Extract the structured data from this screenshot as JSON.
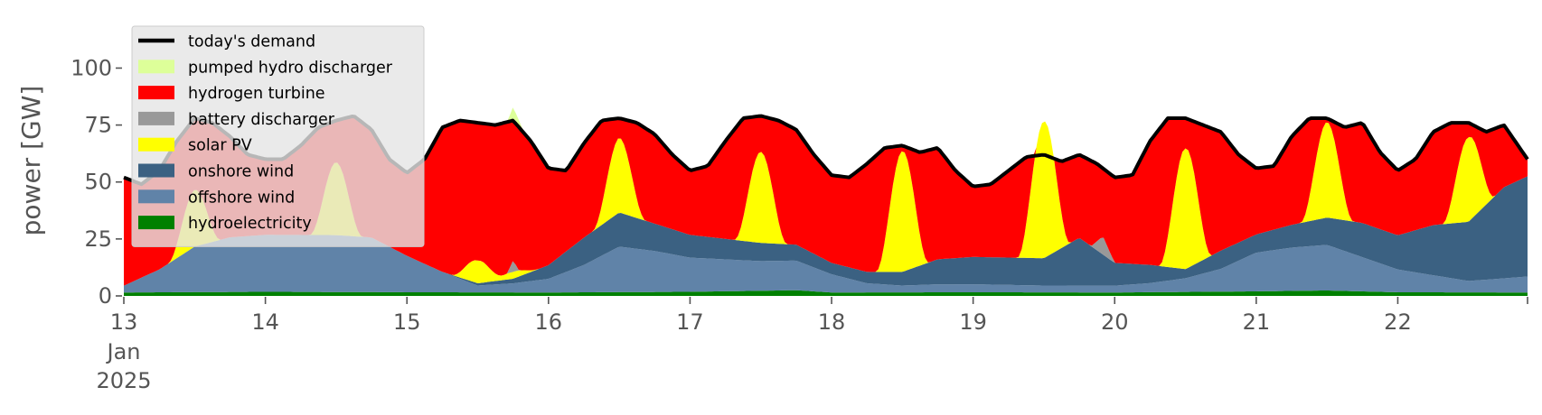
{
  "chart_data": {
    "type": "area",
    "xlabel": "",
    "ylabel": "power [GW]",
    "ylim": [
      0,
      118
    ],
    "xlim": [
      "2025-01-13 00:00",
      "2025-01-22 22:00"
    ],
    "grid": false,
    "legend_position": "top-left",
    "x_ticks": [
      {
        "x": "2025-01-13",
        "label": "13",
        "sub": [
          "Jan",
          "2025"
        ]
      },
      {
        "x": "2025-01-14",
        "label": "14"
      },
      {
        "x": "2025-01-15",
        "label": "15"
      },
      {
        "x": "2025-01-16",
        "label": "16"
      },
      {
        "x": "2025-01-17",
        "label": "17"
      },
      {
        "x": "2025-01-18",
        "label": "18"
      },
      {
        "x": "2025-01-19",
        "label": "19"
      },
      {
        "x": "2025-01-20",
        "label": "20"
      },
      {
        "x": "2025-01-21",
        "label": "21"
      },
      {
        "x": "2025-01-22",
        "label": "22"
      }
    ],
    "y_ticks": [
      0,
      25,
      50,
      75,
      100
    ],
    "stack_order_bottom_to_top": [
      "hydroelectricity",
      "offshore wind",
      "onshore wind",
      "solar PV",
      "battery discharger",
      "hydrogen turbine",
      "pumped hydro discharger"
    ],
    "series": [
      {
        "name": "hydroelectricity",
        "color": "#008000",
        "points": [
          [
            "2025-01-13 00:00",
            1.5
          ],
          [
            "2025-01-14 00:00",
            1.8
          ],
          [
            "2025-01-15 00:00",
            1.6
          ],
          [
            "2025-01-16 00:00",
            1.5
          ],
          [
            "2025-01-17 00:00",
            1.8
          ],
          [
            "2025-01-17 18:00",
            2.5
          ],
          [
            "2025-01-18 00:00",
            1.5
          ],
          [
            "2025-01-19 00:00",
            1.6
          ],
          [
            "2025-01-20 00:00",
            1.5
          ],
          [
            "2025-01-21 00:00",
            2.0
          ],
          [
            "2025-01-21 12:00",
            2.4
          ],
          [
            "2025-01-22 00:00",
            1.6
          ],
          [
            "2025-01-22 22:00",
            1.5
          ]
        ]
      },
      {
        "name": "offshore wind",
        "color": "#6083a8",
        "points": [
          [
            "2025-01-13 00:00",
            3
          ],
          [
            "2025-01-13 06:00",
            10
          ],
          [
            "2025-01-13 12:00",
            20
          ],
          [
            "2025-01-13 18:00",
            24
          ],
          [
            "2025-01-14 00:00",
            25
          ],
          [
            "2025-01-14 06:00",
            25
          ],
          [
            "2025-01-14 12:00",
            25
          ],
          [
            "2025-01-14 18:00",
            24
          ],
          [
            "2025-01-15 00:00",
            16
          ],
          [
            "2025-01-15 06:00",
            9
          ],
          [
            "2025-01-15 12:00",
            3
          ],
          [
            "2025-01-15 18:00",
            4
          ],
          [
            "2025-01-16 00:00",
            6
          ],
          [
            "2025-01-16 06:00",
            12
          ],
          [
            "2025-01-16 12:00",
            20
          ],
          [
            "2025-01-16 18:00",
            18
          ],
          [
            "2025-01-17 00:00",
            15
          ],
          [
            "2025-01-17 06:00",
            14
          ],
          [
            "2025-01-17 12:00",
            13
          ],
          [
            "2025-01-17 18:00",
            13
          ],
          [
            "2025-01-18 00:00",
            8
          ],
          [
            "2025-01-18 06:00",
            4
          ],
          [
            "2025-01-18 12:00",
            3
          ],
          [
            "2025-01-18 18:00",
            3.5
          ],
          [
            "2025-01-19 00:00",
            3.5
          ],
          [
            "2025-01-19 12:00",
            3
          ],
          [
            "2025-01-20 00:00",
            3
          ],
          [
            "2025-01-20 06:00",
            4
          ],
          [
            "2025-01-20 12:00",
            6
          ],
          [
            "2025-01-20 18:00",
            10
          ],
          [
            "2025-01-21 00:00",
            17
          ],
          [
            "2025-01-21 06:00",
            19
          ],
          [
            "2025-01-21 12:00",
            20
          ],
          [
            "2025-01-21 18:00",
            15
          ],
          [
            "2025-01-22 00:00",
            10
          ],
          [
            "2025-01-22 12:00",
            5
          ],
          [
            "2025-01-22 22:00",
            7
          ]
        ]
      },
      {
        "name": "onshore wind",
        "color": "#3b6182",
        "points": [
          [
            "2025-01-13 00:00",
            0
          ],
          [
            "2025-01-14 00:00",
            0
          ],
          [
            "2025-01-14 12:00",
            0
          ],
          [
            "2025-01-15 00:00",
            0
          ],
          [
            "2025-01-15 06:00",
            0
          ],
          [
            "2025-01-15 12:00",
            1
          ],
          [
            "2025-01-15 18:00",
            2
          ],
          [
            "2025-01-16 00:00",
            6
          ],
          [
            "2025-01-16 06:00",
            12
          ],
          [
            "2025-01-16 12:00",
            15
          ],
          [
            "2025-01-16 18:00",
            12
          ],
          [
            "2025-01-17 00:00",
            10
          ],
          [
            "2025-01-17 06:00",
            9
          ],
          [
            "2025-01-17 12:00",
            8
          ],
          [
            "2025-01-17 18:00",
            7
          ],
          [
            "2025-01-18 00:00",
            5
          ],
          [
            "2025-01-18 06:00",
            5
          ],
          [
            "2025-01-18 12:00",
            6
          ],
          [
            "2025-01-18 18:00",
            11
          ],
          [
            "2025-01-19 00:00",
            12
          ],
          [
            "2025-01-19 12:00",
            12
          ],
          [
            "2025-01-19 18:00",
            21
          ],
          [
            "2025-01-20 00:00",
            10
          ],
          [
            "2025-01-20 06:00",
            8
          ],
          [
            "2025-01-20 12:00",
            4
          ],
          [
            "2025-01-20 18:00",
            8
          ],
          [
            "2025-01-21 00:00",
            8
          ],
          [
            "2025-01-21 06:00",
            10
          ],
          [
            "2025-01-21 12:00",
            12
          ],
          [
            "2025-01-21 18:00",
            15
          ],
          [
            "2025-01-22 00:00",
            15
          ],
          [
            "2025-01-22 06:00",
            22
          ],
          [
            "2025-01-22 12:00",
            26
          ],
          [
            "2025-01-22 18:00",
            40
          ],
          [
            "2025-01-22 22:00",
            44
          ]
        ]
      },
      {
        "name": "solar PV",
        "color": "#ffff00",
        "peaks": [
          {
            "center": "2025-01-13 12:00",
            "value": 25
          },
          {
            "center": "2025-01-14 12:00",
            "value": 32
          },
          {
            "center": "2025-01-15 12:00",
            "value": 10
          },
          {
            "center": "2025-01-15 18:00",
            "value": 3
          },
          {
            "center": "2025-01-16 12:00",
            "value": 33
          },
          {
            "center": "2025-01-17 12:00",
            "value": 40
          },
          {
            "center": "2025-01-18 12:00",
            "value": 53
          },
          {
            "center": "2025-01-19 12:00",
            "value": 60
          },
          {
            "center": "2025-01-20 12:00",
            "value": 53
          },
          {
            "center": "2025-01-21 12:00",
            "value": 42
          },
          {
            "center": "2025-01-22 12:00",
            "value": 37
          }
        ]
      },
      {
        "name": "battery discharger",
        "color": "#999999",
        "points": [
          [
            "2025-01-15 17:00",
            0
          ],
          [
            "2025-01-15 18:00",
            5
          ],
          [
            "2025-01-15 19:00",
            0
          ],
          [
            "2025-01-19 20:00",
            0
          ],
          [
            "2025-01-19 22:00",
            8
          ],
          [
            "2025-01-20 00:00",
            0
          ]
        ]
      },
      {
        "name": "hydrogen turbine",
        "color": "#ff0000",
        "fills_to": "today's demand"
      },
      {
        "name": "pumped hydro discharger",
        "color": "#ddff99",
        "points": [
          [
            "2025-01-15 17:00",
            0
          ],
          [
            "2025-01-15 18:00",
            6
          ],
          [
            "2025-01-15 20:00",
            0
          ]
        ]
      },
      {
        "name": "today's demand",
        "color": "#000000",
        "style": "line",
        "points": [
          [
            "2025-01-13 00:00",
            52
          ],
          [
            "2025-01-13 03:00",
            49
          ],
          [
            "2025-01-13 06:00",
            55
          ],
          [
            "2025-01-13 09:00",
            68
          ],
          [
            "2025-01-13 12:00",
            78
          ],
          [
            "2025-01-13 15:00",
            76
          ],
          [
            "2025-01-13 18:00",
            70
          ],
          [
            "2025-01-13 21:00",
            62
          ],
          [
            "2025-01-14 00:00",
            60
          ],
          [
            "2025-01-14 03:00",
            60
          ],
          [
            "2025-01-14 06:00",
            66
          ],
          [
            "2025-01-14 09:00",
            74
          ],
          [
            "2025-01-14 12:00",
            77
          ],
          [
            "2025-01-14 15:00",
            79
          ],
          [
            "2025-01-14 18:00",
            73
          ],
          [
            "2025-01-14 21:00",
            60
          ],
          [
            "2025-01-15 00:00",
            54
          ],
          [
            "2025-01-15 03:00",
            60
          ],
          [
            "2025-01-15 06:00",
            74
          ],
          [
            "2025-01-15 09:00",
            77
          ],
          [
            "2025-01-15 12:00",
            76
          ],
          [
            "2025-01-15 15:00",
            75
          ],
          [
            "2025-01-15 18:00",
            77
          ],
          [
            "2025-01-15 21:00",
            68
          ],
          [
            "2025-01-16 00:00",
            56
          ],
          [
            "2025-01-16 03:00",
            55
          ],
          [
            "2025-01-16 06:00",
            67
          ],
          [
            "2025-01-16 09:00",
            77
          ],
          [
            "2025-01-16 12:00",
            78
          ],
          [
            "2025-01-16 15:00",
            76
          ],
          [
            "2025-01-16 18:00",
            71
          ],
          [
            "2025-01-16 21:00",
            62
          ],
          [
            "2025-01-17 00:00",
            55
          ],
          [
            "2025-01-17 03:00",
            57
          ],
          [
            "2025-01-17 06:00",
            68
          ],
          [
            "2025-01-17 09:00",
            78
          ],
          [
            "2025-01-17 12:00",
            79
          ],
          [
            "2025-01-17 15:00",
            77
          ],
          [
            "2025-01-17 18:00",
            73
          ],
          [
            "2025-01-17 21:00",
            62
          ],
          [
            "2025-01-18 00:00",
            53
          ],
          [
            "2025-01-18 03:00",
            52
          ],
          [
            "2025-01-18 06:00",
            58
          ],
          [
            "2025-01-18 09:00",
            65
          ],
          [
            "2025-01-18 12:00",
            66
          ],
          [
            "2025-01-18 15:00",
            63
          ],
          [
            "2025-01-18 18:00",
            65
          ],
          [
            "2025-01-18 21:00",
            55
          ],
          [
            "2025-01-19 00:00",
            48
          ],
          [
            "2025-01-19 03:00",
            49
          ],
          [
            "2025-01-19 06:00",
            55
          ],
          [
            "2025-01-19 09:00",
            61
          ],
          [
            "2025-01-19 12:00",
            62
          ],
          [
            "2025-01-19 15:00",
            59
          ],
          [
            "2025-01-19 18:00",
            62
          ],
          [
            "2025-01-19 21:00",
            58
          ],
          [
            "2025-01-20 00:00",
            52
          ],
          [
            "2025-01-20 03:00",
            53
          ],
          [
            "2025-01-20 06:00",
            68
          ],
          [
            "2025-01-20 09:00",
            78
          ],
          [
            "2025-01-20 12:00",
            78
          ],
          [
            "2025-01-20 15:00",
            75
          ],
          [
            "2025-01-20 18:00",
            72
          ],
          [
            "2025-01-20 21:00",
            62
          ],
          [
            "2025-01-21 00:00",
            56
          ],
          [
            "2025-01-21 03:00",
            57
          ],
          [
            "2025-01-21 06:00",
            70
          ],
          [
            "2025-01-21 09:00",
            78
          ],
          [
            "2025-01-21 12:00",
            78
          ],
          [
            "2025-01-21 15:00",
            74
          ],
          [
            "2025-01-21 18:00",
            76
          ],
          [
            "2025-01-21 21:00",
            63
          ],
          [
            "2025-01-22 00:00",
            55
          ],
          [
            "2025-01-22 03:00",
            60
          ],
          [
            "2025-01-22 06:00",
            72
          ],
          [
            "2025-01-22 09:00",
            76
          ],
          [
            "2025-01-22 12:00",
            76
          ],
          [
            "2025-01-22 15:00",
            72
          ],
          [
            "2025-01-22 18:00",
            75
          ],
          [
            "2025-01-22 22:00",
            60
          ]
        ]
      }
    ],
    "legend": [
      {
        "label": "today's demand",
        "type": "line",
        "color": "#000000"
      },
      {
        "label": "pumped hydro discharger",
        "type": "patch",
        "color": "#ddff99"
      },
      {
        "label": "hydrogen turbine",
        "type": "patch",
        "color": "#ff0000"
      },
      {
        "label": "battery discharger",
        "type": "patch",
        "color": "#999999"
      },
      {
        "label": "solar PV",
        "type": "patch",
        "color": "#ffff00"
      },
      {
        "label": "onshore wind",
        "type": "patch",
        "color": "#3b6182"
      },
      {
        "label": "offshore wind",
        "type": "patch",
        "color": "#6083a8"
      },
      {
        "label": "hydroelectricity",
        "type": "patch",
        "color": "#008000"
      }
    ]
  }
}
